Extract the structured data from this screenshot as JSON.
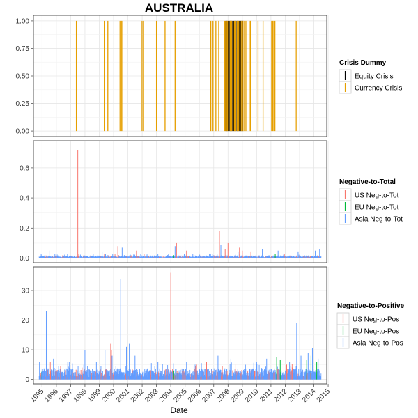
{
  "figure_title": "AUSTRALIA",
  "xlabel": "Date",
  "x_ticks": [
    "1995",
    "1996",
    "1997",
    "1998",
    "1999",
    "2000",
    "2001",
    "2002",
    "2003",
    "2004",
    "2005",
    "2006",
    "2007",
    "2008",
    "2009",
    "2010",
    "2011",
    "2012",
    "2013",
    "2014",
    "2015"
  ],
  "colors": {
    "equity": "#000000",
    "currency": "#E69F00",
    "us": "#F8766D",
    "eu": "#00BA38",
    "asia": "#619CFF",
    "panel_border": "#555555",
    "grid": "#e6e6e6"
  },
  "chart_data": [
    {
      "type": "bar",
      "panel": "crisis",
      "xlabel": "",
      "ylabel": "",
      "ylim": [
        -0.05,
        1.05
      ],
      "y_ticks": [
        "0.00",
        "0.25",
        "0.50",
        "0.75",
        "1.00"
      ],
      "y_tick_values": [
        0,
        0.25,
        0.5,
        0.75,
        1
      ],
      "legend_title": "Crisis Dummy",
      "legend_placement": "right",
      "series": [
        {
          "name": "Equity Crisis",
          "color_key": "equity",
          "x": [
            2008.35,
            2008.42,
            2008.5,
            2008.58,
            2008.66,
            2008.74,
            2008.82,
            2008.9,
            2008.98,
            2009.06,
            2009.14,
            2009.22,
            2009.3,
            2009.38,
            2009.46,
            2009.54
          ],
          "values": [
            1,
            1,
            1,
            1,
            1,
            1,
            1,
            1,
            1,
            1,
            1,
            1,
            1,
            1,
            1,
            1
          ]
        },
        {
          "name": "Currency Crisis",
          "color_key": "currency",
          "x": [
            1997.9,
            1999.85,
            2000.1,
            2000.95,
            2001.02,
            2001.08,
            2002.45,
            2002.55,
            2003.5,
            2004.1,
            2004.8,
            2007.3,
            2007.45,
            2007.65,
            2007.85,
            2008.25,
            2008.3,
            2008.38,
            2008.45,
            2008.55,
            2008.65,
            2008.75,
            2008.85,
            2008.95,
            2009.05,
            2009.15,
            2009.25,
            2009.35,
            2009.45,
            2009.55,
            2009.65,
            2009.75,
            2010.05,
            2010.1,
            2010.6,
            2010.95,
            2011.55,
            2011.62,
            2011.7,
            2011.78,
            2013.2,
            2013.3
          ],
          "values": [
            1,
            1,
            1,
            1,
            1,
            1,
            1,
            1,
            1,
            1,
            1,
            1,
            1,
            1,
            1,
            1,
            1,
            1,
            1,
            1,
            1,
            1,
            1,
            1,
            1,
            1,
            1,
            1,
            1,
            1,
            1,
            1,
            1,
            1,
            1,
            1,
            1,
            1,
            1,
            1,
            1,
            1
          ]
        }
      ]
    },
    {
      "type": "bar",
      "panel": "neg_to_total",
      "xlabel": "",
      "ylabel": "",
      "ylim": [
        -0.03,
        0.78
      ],
      "y_ticks": [
        "0.0",
        "0.2",
        "0.4",
        "0.6"
      ],
      "y_tick_values": [
        0,
        0.2,
        0.4,
        0.6
      ],
      "legend_title": "Negative-to-Total",
      "legend_placement": "right",
      "baseline": {
        "x_range": [
          1995.3,
          2015.0
        ],
        "typical": 0.012,
        "max_noise": 0.03
      },
      "series": [
        {
          "name": "US Neg-to-Tot",
          "color_key": "us",
          "x": [
            1998.0,
            2000.8,
            2002.1,
            2004.9,
            2005.6,
            2007.9,
            2008.3,
            2008.5,
            2009.3,
            2009.5,
            2010.1
          ],
          "values": [
            0.72,
            0.08,
            0.05,
            0.1,
            0.05,
            0.18,
            0.06,
            0.1,
            0.07,
            0.05,
            0.04
          ]
        },
        {
          "name": "EU Neg-to-Tot",
          "color_key": "eu",
          "x": [
            2004.7,
            2011.8
          ],
          "values": [
            0.02,
            0.03
          ]
        },
        {
          "name": "Asia Neg-to-Tot",
          "color_key": "asia",
          "x": [
            1996.0,
            1999.7,
            2001.1,
            2002.4,
            2004.8,
            2007.4,
            2008.0,
            2009.2,
            2010.9,
            2012.0,
            2013.4,
            2014.6,
            2014.9
          ],
          "values": [
            0.05,
            0.04,
            0.07,
            0.03,
            0.08,
            0.03,
            0.09,
            0.04,
            0.06,
            0.05,
            0.04,
            0.05,
            0.06
          ]
        }
      ]
    },
    {
      "type": "bar",
      "panel": "neg_to_pos",
      "xlabel": "Date",
      "ylabel": "",
      "ylim": [
        -1.5,
        38
      ],
      "y_ticks": [
        "0",
        "10",
        "20",
        "30"
      ],
      "y_tick_values": [
        0,
        10,
        20,
        30
      ],
      "legend_title": "Negative-to-Positive",
      "legend_placement": "right",
      "baseline": {
        "x_range": [
          1995.3,
          2015.0
        ],
        "typical": 2.5,
        "max_noise": 6
      },
      "series": [
        {
          "name": "US Neg-to-Pos",
          "color_key": "us",
          "x": [
            1996.8,
            1998.3,
            2000.3,
            2000.35,
            2001.4,
            2004.5,
            2006.3,
            2007.0,
            2008.1,
            2009.0,
            2012.6,
            2013.0
          ],
          "values": [
            4.5,
            4,
            12,
            10,
            5,
            36,
            5,
            6,
            4.5,
            5,
            5,
            4
          ]
        },
        {
          "name": "EU Neg-to-Pos",
          "color_key": "eu",
          "x": [
            1995.5,
            2004.7,
            2004.85,
            2005.0,
            2011.9,
            2012.15,
            2014.0,
            2014.3,
            2014.7
          ],
          "values": [
            2.8,
            3,
            2.5,
            2.2,
            7.5,
            6.5,
            6.5,
            8,
            6
          ]
        },
        {
          "name": "Asia Neg-to-Pos",
          "color_key": "asia",
          "x": [
            1995.8,
            1996.3,
            1997.3,
            1998.5,
            1999.3,
            1999.9,
            2000.4,
            2001.0,
            2001.4,
            2001.6,
            2002.0,
            2003.6,
            2005.6,
            2007.8,
            2008.7,
            2010.5,
            2011.2,
            2012.8,
            2013.3,
            2013.6,
            2014.1,
            2014.4,
            2014.8
          ],
          "values": [
            23,
            7,
            6,
            9.8,
            6,
            10,
            8,
            34,
            11,
            12,
            8,
            6,
            6,
            8,
            7,
            6,
            7,
            6,
            19,
            8,
            9,
            10.5,
            7
          ]
        }
      ]
    }
  ]
}
